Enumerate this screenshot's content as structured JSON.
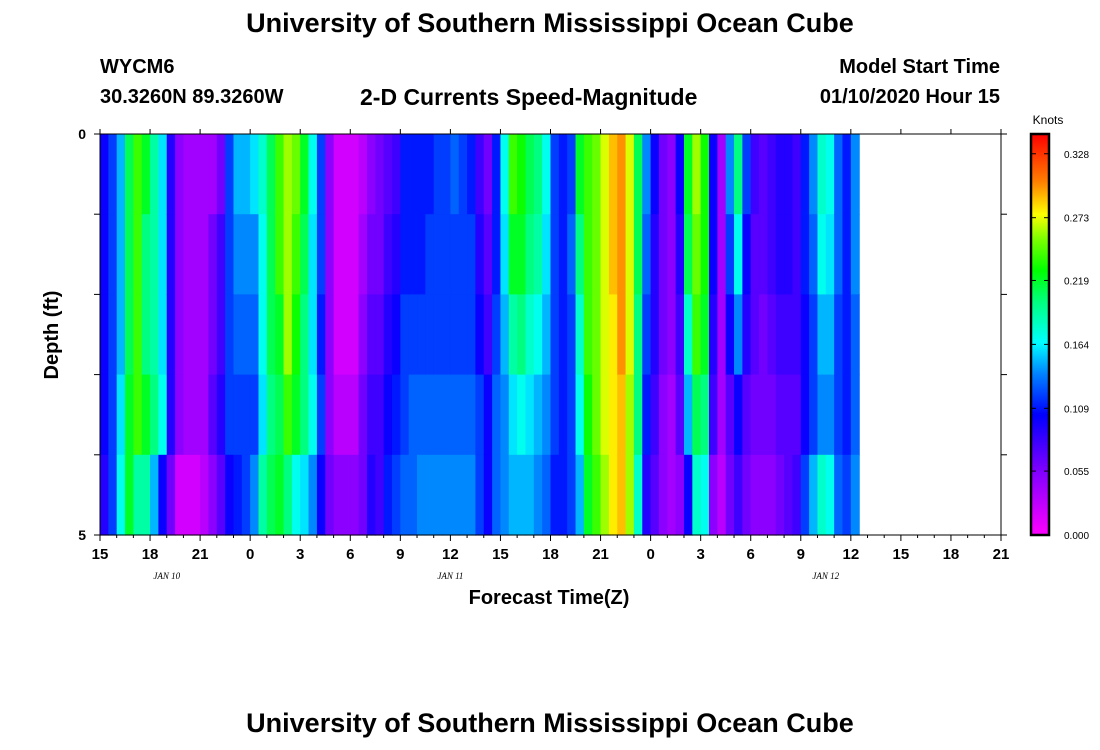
{
  "header": {
    "title": "University of Southern Mississippi Ocean Cube",
    "station_id": "WYCM6",
    "station_coords": "30.3260N 89.3260W",
    "product": "2-D Currents Speed-Magnitude",
    "model_start_label": "Model Start Time",
    "model_start_value": "01/10/2020 Hour 15"
  },
  "footer": {
    "title": "University of Southern Mississippi Ocean Cube"
  },
  "chart_data": {
    "type": "heatmap",
    "title": "2-D Currents Speed-Magnitude",
    "xlabel": "Forecast Time(Z)",
    "ylabel": "Depth (ft)",
    "x_ticks": [
      "15",
      "18",
      "21",
      "0",
      "3",
      "6",
      "9",
      "12",
      "15",
      "18",
      "21",
      "0",
      "3",
      "6",
      "9",
      "12",
      "15",
      "18",
      "21"
    ],
    "x_range_hours": [
      0,
      54
    ],
    "date_labels": [
      {
        "label": "JAN  10",
        "hour": 4
      },
      {
        "label": "JAN  11",
        "hour": 21
      },
      {
        "label": "JAN  12",
        "hour": 43.5
      }
    ],
    "y_ticks": [
      "0",
      "5"
    ],
    "ylim": [
      0,
      5
    ],
    "colorbar": {
      "unit": "Knots",
      "ticks": [
        "0.328",
        "0.273",
        "0.219",
        "0.164",
        "0.109",
        "0.055",
        "0.000"
      ],
      "min": 0.0,
      "max": 0.345
    },
    "grid": false,
    "time_step_hours": 0.5,
    "depth_levels": 5,
    "speed_columns": [
      [
        0.1,
        0.1,
        0.1,
        0.1,
        0.09
      ],
      [
        0.12,
        0.12,
        0.12,
        0.12,
        0.12
      ],
      [
        0.15,
        0.15,
        0.15,
        0.16,
        0.17
      ],
      [
        0.21,
        0.21,
        0.21,
        0.22,
        0.22
      ],
      [
        0.24,
        0.24,
        0.24,
        0.24,
        0.19
      ],
      [
        0.22,
        0.2,
        0.2,
        0.22,
        0.19
      ],
      [
        0.19,
        0.19,
        0.19,
        0.2,
        0.15
      ],
      [
        0.16,
        0.16,
        0.16,
        0.17,
        0.1
      ],
      [
        0.09,
        0.09,
        0.09,
        0.09,
        0.06
      ],
      [
        0.05,
        0.05,
        0.05,
        0.05,
        0.02
      ],
      [
        0.04,
        0.04,
        0.04,
        0.04,
        0.02
      ],
      [
        0.04,
        0.04,
        0.04,
        0.04,
        0.02
      ],
      [
        0.04,
        0.04,
        0.04,
        0.04,
        0.03
      ],
      [
        0.04,
        0.06,
        0.06,
        0.07,
        0.05
      ],
      [
        0.06,
        0.08,
        0.08,
        0.09,
        0.07
      ],
      [
        0.12,
        0.12,
        0.12,
        0.12,
        0.1
      ],
      [
        0.15,
        0.14,
        0.13,
        0.12,
        0.11
      ],
      [
        0.15,
        0.14,
        0.13,
        0.12,
        0.12
      ],
      [
        0.16,
        0.14,
        0.13,
        0.12,
        0.14
      ],
      [
        0.18,
        0.17,
        0.17,
        0.16,
        0.19
      ],
      [
        0.21,
        0.21,
        0.21,
        0.2,
        0.21
      ],
      [
        0.24,
        0.24,
        0.22,
        0.21,
        0.22
      ],
      [
        0.26,
        0.26,
        0.26,
        0.24,
        0.2
      ],
      [
        0.25,
        0.24,
        0.23,
        0.22,
        0.17
      ],
      [
        0.22,
        0.21,
        0.2,
        0.2,
        0.16
      ],
      [
        0.17,
        0.16,
        0.16,
        0.17,
        0.14
      ],
      [
        0.12,
        0.12,
        0.11,
        0.12,
        0.1
      ],
      [
        0.05,
        0.05,
        0.05,
        0.05,
        0.06
      ],
      [
        0.02,
        0.02,
        0.02,
        0.03,
        0.05
      ],
      [
        0.02,
        0.02,
        0.02,
        0.03,
        0.05
      ],
      [
        0.02,
        0.02,
        0.02,
        0.03,
        0.05
      ],
      [
        0.03,
        0.04,
        0.05,
        0.06,
        0.06
      ],
      [
        0.05,
        0.06,
        0.07,
        0.08,
        0.09
      ],
      [
        0.06,
        0.06,
        0.07,
        0.08,
        0.08
      ],
      [
        0.07,
        0.08,
        0.09,
        0.1,
        0.11
      ],
      [
        0.08,
        0.09,
        0.1,
        0.11,
        0.12
      ],
      [
        0.11,
        0.11,
        0.12,
        0.12,
        0.13
      ],
      [
        0.11,
        0.11,
        0.12,
        0.13,
        0.13
      ],
      [
        0.11,
        0.11,
        0.12,
        0.13,
        0.14
      ],
      [
        0.11,
        0.12,
        0.12,
        0.13,
        0.14
      ],
      [
        0.12,
        0.12,
        0.12,
        0.13,
        0.14
      ],
      [
        0.12,
        0.12,
        0.12,
        0.13,
        0.14
      ],
      [
        0.13,
        0.12,
        0.12,
        0.13,
        0.14
      ],
      [
        0.12,
        0.12,
        0.12,
        0.13,
        0.14
      ],
      [
        0.11,
        0.12,
        0.12,
        0.13,
        0.14
      ],
      [
        0.08,
        0.09,
        0.1,
        0.12,
        0.12
      ],
      [
        0.06,
        0.07,
        0.08,
        0.1,
        0.1
      ],
      [
        0.11,
        0.11,
        0.12,
        0.13,
        0.13
      ],
      [
        0.17,
        0.16,
        0.15,
        0.14,
        0.14
      ],
      [
        0.24,
        0.22,
        0.19,
        0.16,
        0.15
      ],
      [
        0.23,
        0.22,
        0.2,
        0.17,
        0.15
      ],
      [
        0.21,
        0.2,
        0.18,
        0.16,
        0.15
      ],
      [
        0.2,
        0.19,
        0.17,
        0.15,
        0.14
      ],
      [
        0.17,
        0.16,
        0.15,
        0.14,
        0.13
      ],
      [
        0.12,
        0.12,
        0.12,
        0.12,
        0.11
      ],
      [
        0.11,
        0.11,
        0.11,
        0.11,
        0.11
      ],
      [
        0.12,
        0.13,
        0.12,
        0.12,
        0.12
      ],
      [
        0.22,
        0.2,
        0.18,
        0.17,
        0.15
      ],
      [
        0.24,
        0.24,
        0.24,
        0.23,
        0.22
      ],
      [
        0.25,
        0.25,
        0.25,
        0.25,
        0.24
      ],
      [
        0.27,
        0.27,
        0.27,
        0.27,
        0.26
      ],
      [
        0.29,
        0.29,
        0.28,
        0.28,
        0.28
      ],
      [
        0.3,
        0.3,
        0.3,
        0.29,
        0.29
      ],
      [
        0.27,
        0.27,
        0.27,
        0.26,
        0.26
      ],
      [
        0.21,
        0.21,
        0.2,
        0.2,
        0.18
      ],
      [
        0.14,
        0.13,
        0.12,
        0.11,
        0.09
      ],
      [
        0.1,
        0.09,
        0.09,
        0.08,
        0.07
      ],
      [
        0.06,
        0.06,
        0.06,
        0.05,
        0.05
      ],
      [
        0.05,
        0.05,
        0.05,
        0.04,
        0.04
      ],
      [
        0.1,
        0.09,
        0.08,
        0.07,
        0.05
      ],
      [
        0.22,
        0.21,
        0.18,
        0.15,
        0.1
      ],
      [
        0.26,
        0.25,
        0.24,
        0.21,
        0.18
      ],
      [
        0.23,
        0.23,
        0.22,
        0.2,
        0.17
      ],
      [
        0.1,
        0.1,
        0.09,
        0.08,
        0.05
      ],
      [
        0.04,
        0.04,
        0.04,
        0.04,
        0.03
      ],
      [
        0.14,
        0.12,
        0.1,
        0.07,
        0.06
      ],
      [
        0.2,
        0.17,
        0.14,
        0.1,
        0.08
      ],
      [
        0.12,
        0.1,
        0.09,
        0.07,
        0.06
      ],
      [
        0.08,
        0.07,
        0.07,
        0.06,
        0.05
      ],
      [
        0.07,
        0.07,
        0.06,
        0.06,
        0.05
      ],
      [
        0.08,
        0.08,
        0.07,
        0.06,
        0.05
      ],
      [
        0.09,
        0.09,
        0.08,
        0.07,
        0.06
      ],
      [
        0.09,
        0.09,
        0.08,
        0.07,
        0.07
      ],
      [
        0.08,
        0.08,
        0.08,
        0.07,
        0.08
      ],
      [
        0.11,
        0.11,
        0.1,
        0.1,
        0.12
      ],
      [
        0.14,
        0.13,
        0.12,
        0.12,
        0.15
      ],
      [
        0.18,
        0.17,
        0.15,
        0.14,
        0.18
      ],
      [
        0.17,
        0.16,
        0.15,
        0.14,
        0.17
      ],
      [
        0.13,
        0.13,
        0.12,
        0.12,
        0.13
      ],
      [
        0.11,
        0.11,
        0.11,
        0.11,
        0.12
      ],
      [
        0.14,
        0.14,
        0.13,
        0.13,
        0.14
      ]
    ]
  }
}
